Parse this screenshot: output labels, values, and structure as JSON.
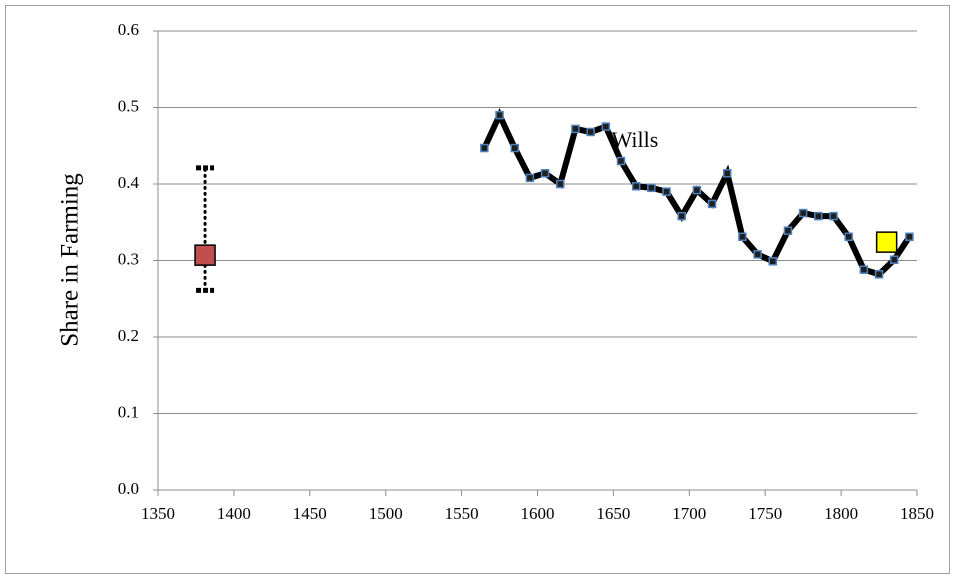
{
  "chart_data": {
    "type": "line",
    "y_label": "Share in Farming",
    "xlim": [
      1350,
      1850
    ],
    "xticks": [
      1350,
      1400,
      1450,
      1500,
      1550,
      1600,
      1650,
      1700,
      1750,
      1800,
      1850
    ],
    "ylim": [
      0,
      0.6
    ],
    "yticks": [
      {
        "value": 0,
        "label": "0.0"
      },
      0.1,
      0.2,
      0.3,
      0.4,
      0.5,
      0.6
    ],
    "grid": true,
    "series": [
      {
        "name": "Wills",
        "color": "#000000",
        "marker_color": "#4f81bd",
        "x": [
          1565,
          1575,
          1585,
          1595,
          1605,
          1615,
          1625,
          1635,
          1645,
          1655,
          1665,
          1675,
          1685,
          1695,
          1705,
          1715,
          1725,
          1735,
          1745,
          1755,
          1765,
          1775,
          1785,
          1795,
          1805,
          1815,
          1825,
          1835,
          1845
        ],
        "values": [
          0.447,
          0.49,
          0.447,
          0.408,
          0.414,
          0.4,
          0.472,
          0.468,
          0.475,
          0.43,
          0.397,
          0.395,
          0.39,
          0.358,
          0.392,
          0.374,
          0.414,
          0.331,
          0.308,
          0.299,
          0.339,
          0.362,
          0.358,
          0.358,
          0.331,
          0.288,
          0.282,
          0.301,
          0.331
        ]
      },
      {
        "color": "#c0504d",
        "x": [
          1381
        ],
        "values": [
          0.307
        ],
        "error_low": [
          0.261
        ],
        "error_high": [
          0.421
        ]
      },
      {
        "color": "#ffff00",
        "x": [
          1830
        ],
        "values": [
          0.324
        ]
      }
    ]
  }
}
